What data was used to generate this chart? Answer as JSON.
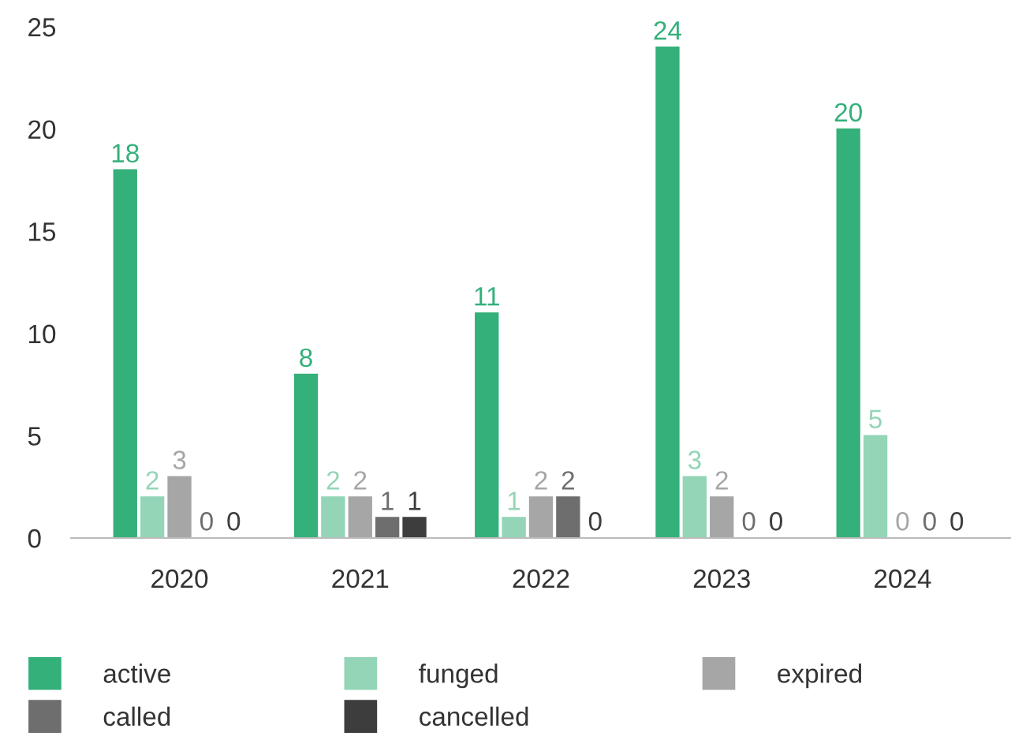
{
  "chart_data": {
    "type": "bar",
    "categories": [
      "2020",
      "2021",
      "2022",
      "2023",
      "2024"
    ],
    "series": [
      {
        "name": "active",
        "color": "#34b07a",
        "values": [
          18,
          8,
          11,
          24,
          20
        ]
      },
      {
        "name": "funged",
        "color": "#93d5b6",
        "values": [
          2,
          2,
          1,
          3,
          5
        ]
      },
      {
        "name": "expired",
        "color": "#a6a6a6",
        "values": [
          3,
          2,
          2,
          2,
          0
        ]
      },
      {
        "name": "called",
        "color": "#6e6e6e",
        "values": [
          0,
          1,
          2,
          0,
          0
        ]
      },
      {
        "name": "cancelled",
        "color": "#3d3d3d",
        "values": [
          0,
          1,
          0,
          0,
          0
        ]
      }
    ],
    "ylim": [
      0,
      25
    ],
    "yticks": [
      0,
      5,
      10,
      15,
      20,
      25
    ],
    "data_labels": true,
    "legend": "bottom",
    "grid": false
  }
}
